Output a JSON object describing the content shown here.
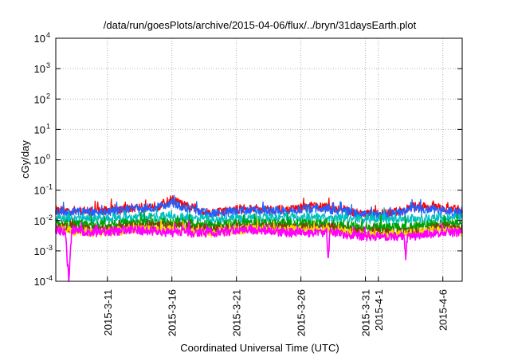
{
  "chart_data": {
    "type": "line",
    "title": "/data/run/goesPlots/archive/2015-04-06/flux/../bryn/31daysEarth.plot",
    "xlabel": "Coordinated Universal Time (UTC)",
    "ylabel": "cGy/day",
    "yscale": "log",
    "ylim": [
      0.0001,
      10000
    ],
    "xlim": [
      "2015-03-07",
      "2015-04-07T12:00"
    ],
    "grid": true,
    "x_ticks": [
      {
        "date": "2015-03-11",
        "label": "2015-3-11"
      },
      {
        "date": "2015-03-16",
        "label": "2015-3-16"
      },
      {
        "date": "2015-03-21",
        "label": "2015-3-21"
      },
      {
        "date": "2015-03-26",
        "label": "2015-3-26"
      },
      {
        "date": "2015-03-31",
        "label": "2015-3-31"
      },
      {
        "date": "2015-04-01",
        "label": "2015-4-1"
      },
      {
        "date": "2015-04-06",
        "label": "2015-4-6"
      }
    ],
    "y_ticks": [
      {
        "value": 0.0001,
        "base": "10",
        "exp": "-4"
      },
      {
        "value": 0.001,
        "base": "10",
        "exp": "-3"
      },
      {
        "value": 0.01,
        "base": "10",
        "exp": "-2"
      },
      {
        "value": 0.1,
        "base": "10",
        "exp": "-1"
      },
      {
        "value": 1,
        "base": "10",
        "exp": "0"
      },
      {
        "value": 10,
        "base": "10",
        "exp": "1"
      },
      {
        "value": 100,
        "base": "10",
        "exp": "2"
      },
      {
        "value": 1000,
        "base": "10",
        "exp": "3"
      },
      {
        "value": 10000,
        "base": "10",
        "exp": "4"
      }
    ],
    "series": [
      {
        "color": "#ff0000",
        "x": [
          "2015-03-07",
          "2015-03-10",
          "2015-03-13",
          "2015-03-15",
          "2015-03-16",
          "2015-03-17",
          "2015-03-19",
          "2015-03-22",
          "2015-03-25",
          "2015-03-27",
          "2015-03-29",
          "2015-03-31",
          "2015-04-02",
          "2015-04-04",
          "2015-04-06",
          "2015-04-07T12:00"
        ],
        "y": [
          0.022,
          0.02,
          0.026,
          0.03,
          0.05,
          0.03,
          0.018,
          0.025,
          0.022,
          0.03,
          0.024,
          0.016,
          0.017,
          0.03,
          0.025,
          0.022
        ]
      },
      {
        "color": "#2060ff",
        "x": [
          "2015-03-07",
          "2015-03-10",
          "2015-03-13",
          "2015-03-15",
          "2015-03-16",
          "2015-03-17",
          "2015-03-19",
          "2015-03-22",
          "2015-03-25",
          "2015-03-27",
          "2015-03-29",
          "2015-03-31",
          "2015-04-02",
          "2015-04-04",
          "2015-04-06",
          "2015-04-07T12:00"
        ],
        "y": [
          0.02,
          0.018,
          0.024,
          0.028,
          0.04,
          0.026,
          0.016,
          0.022,
          0.02,
          0.026,
          0.022,
          0.015,
          0.015,
          0.025,
          0.02,
          0.02
        ]
      },
      {
        "color": "#00bfbf",
        "x": [
          "2015-03-07",
          "2015-03-10",
          "2015-03-13",
          "2015-03-16",
          "2015-03-19",
          "2015-03-22",
          "2015-03-25",
          "2015-03-28",
          "2015-03-31",
          "2015-04-03",
          "2015-04-06",
          "2015-04-07T12:00"
        ],
        "y": [
          0.012,
          0.011,
          0.012,
          0.014,
          0.011,
          0.012,
          0.013,
          0.012,
          0.011,
          0.011,
          0.013,
          0.012
        ]
      },
      {
        "color": "#00a000",
        "x": [
          "2015-03-07",
          "2015-03-10",
          "2015-03-13",
          "2015-03-16",
          "2015-03-19",
          "2015-03-22",
          "2015-03-25",
          "2015-03-28",
          "2015-03-31",
          "2015-04-03",
          "2015-04-06",
          "2015-04-07T12:00"
        ],
        "y": [
          0.008,
          0.007,
          0.008,
          0.009,
          0.007,
          0.008,
          0.008,
          0.008,
          0.006,
          0.006,
          0.008,
          0.007
        ]
      },
      {
        "color": "#804000",
        "x": [
          "2015-03-07",
          "2015-03-10",
          "2015-03-13",
          "2015-03-16",
          "2015-03-19",
          "2015-03-22",
          "2015-03-25",
          "2015-03-28",
          "2015-03-31",
          "2015-04-03",
          "2015-04-06",
          "2015-04-07T12:00"
        ],
        "y": [
          0.006,
          0.005,
          0.006,
          0.007,
          0.005,
          0.006,
          0.006,
          0.006,
          0.004,
          0.004,
          0.006,
          0.005
        ]
      },
      {
        "color": "#ffd700",
        "x": [
          "2015-03-07",
          "2015-03-10",
          "2015-03-13",
          "2015-03-16",
          "2015-03-19",
          "2015-03-22",
          "2015-03-25",
          "2015-03-28",
          "2015-03-31",
          "2015-04-03",
          "2015-04-06",
          "2015-04-07T12:00"
        ],
        "y": [
          0.005,
          0.004,
          0.005,
          0.005,
          0.004,
          0.005,
          0.005,
          0.005,
          0.0035,
          0.0035,
          0.005,
          0.004
        ]
      },
      {
        "color": "#ff00ff",
        "x": [
          "2015-03-07",
          "2015-03-07T18:00",
          "2015-03-08",
          "2015-03-08T06:00",
          "2015-03-10",
          "2015-03-13",
          "2015-03-16",
          "2015-03-19",
          "2015-03-22",
          "2015-03-25",
          "2015-03-28",
          "2015-03-28T03:00",
          "2015-03-28T06:00",
          "2015-03-31",
          "2015-04-03",
          "2015-04-03T03:00",
          "2015-04-03T06:00",
          "2015-04-06",
          "2015-04-07T12:00"
        ],
        "y": [
          0.005,
          0.004,
          0.0001,
          0.005,
          0.004,
          0.005,
          0.004,
          0.004,
          0.005,
          0.004,
          0.004,
          0.0006,
          0.004,
          0.003,
          0.003,
          0.0006,
          0.003,
          0.004,
          0.004
        ]
      }
    ]
  }
}
